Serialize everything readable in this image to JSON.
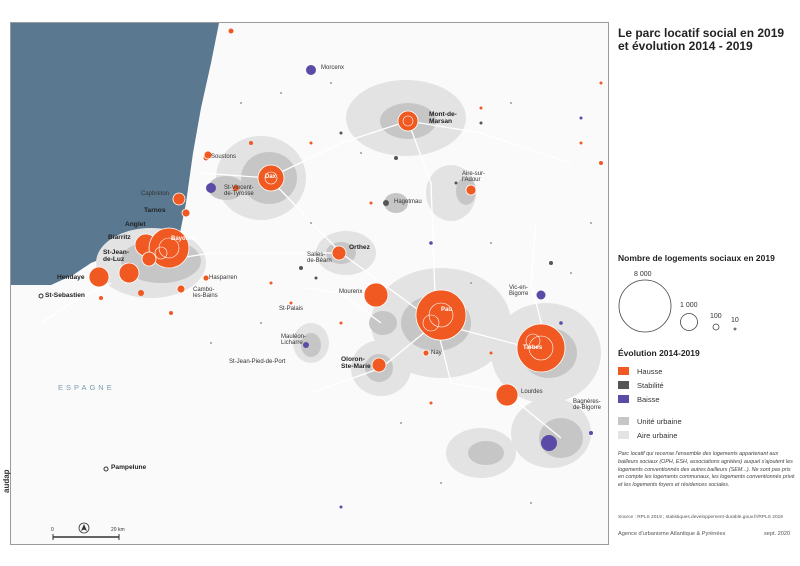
{
  "title": "Le parc locatif social en 2019 et évolution 2014 - 2019",
  "legend": {
    "size_title": "Nombre de logements sociaux en 2019",
    "size_values": [
      "8 000",
      "1 000",
      "100",
      "10"
    ],
    "evolution_title": "Évolution 2014-2019",
    "evolution_items": [
      {
        "label": "Hausse",
        "color": "#f05a22"
      },
      {
        "label": "Stabilité",
        "color": "#555555"
      },
      {
        "label": "Baisse",
        "color": "#5b4aa6"
      }
    ],
    "area_items": [
      {
        "label": "Unité urbaine",
        "color": "#c6c6c6"
      },
      {
        "label": "Aire urbaine",
        "color": "#e3e3e3"
      }
    ]
  },
  "note": "Parc locatif qui recense l'ensemble des logements appartenant aux bailleurs sociaux (OPH, ESH, associations agréées) auquel s'ajoutent les logements conventionnés des autres bailleurs (SEM...). Ne sont pas pris en compte les logements communaux, les logements conventionnés privé et les logements foyers et résidences sociales.",
  "source": "Source : RPLS 2019 ; statistiques.developpement-durable.gouv.fr/RPLS 2019",
  "footer": {
    "agency": "Agence d'urbanisme Atlantique & Pyrénées",
    "date": "sept. 2020",
    "logo": "audap"
  },
  "scale": {
    "start": "0",
    "end": "20 km"
  },
  "places": {
    "mont_de_marsan": "Mont-de-\nMarsan",
    "morcenx": "Morcenx",
    "dax": "Dax",
    "soustons": "Soustons",
    "capbreton": "Capbreton",
    "st_vincent": "St-Vincent-\nde-Tyrosse",
    "tarnos": "Tarnos",
    "anglet": "Anglet",
    "biarritz": "Biarritz",
    "bayonne": "Bayonne",
    "st_jean_de_luz": "St-Jean-\nde-Luz",
    "hendaye": "Hendaye",
    "st_sebastien": "St-Sebastien",
    "hasparren": "Hasparren",
    "cambo": "Cambo-\nles-Bains",
    "hagetmau": "Hagetmau",
    "aire_sur_adour": "Aire-sur-\nl'Adour",
    "orthez": "Orthez",
    "salies": "Salies-\nde-Béarn",
    "mourenx": "Mourenx",
    "st_palais": "St-Palais",
    "mauleon": "Mauléon-\nLicharre",
    "st_jean_pied": "St-Jean-Pied-de-Port",
    "pau": "Pau",
    "nay": "Nay",
    "oloron": "Oloron-\nSte-Marie",
    "vic": "Vic-en-\nBigorre",
    "tarbes": "Tarbes",
    "lourdes": "Lourdes",
    "bagneres": "Bagnères-\nde-Bigorre",
    "espagne": "ESPAGNE",
    "pampelune": "Pampelune"
  }
}
